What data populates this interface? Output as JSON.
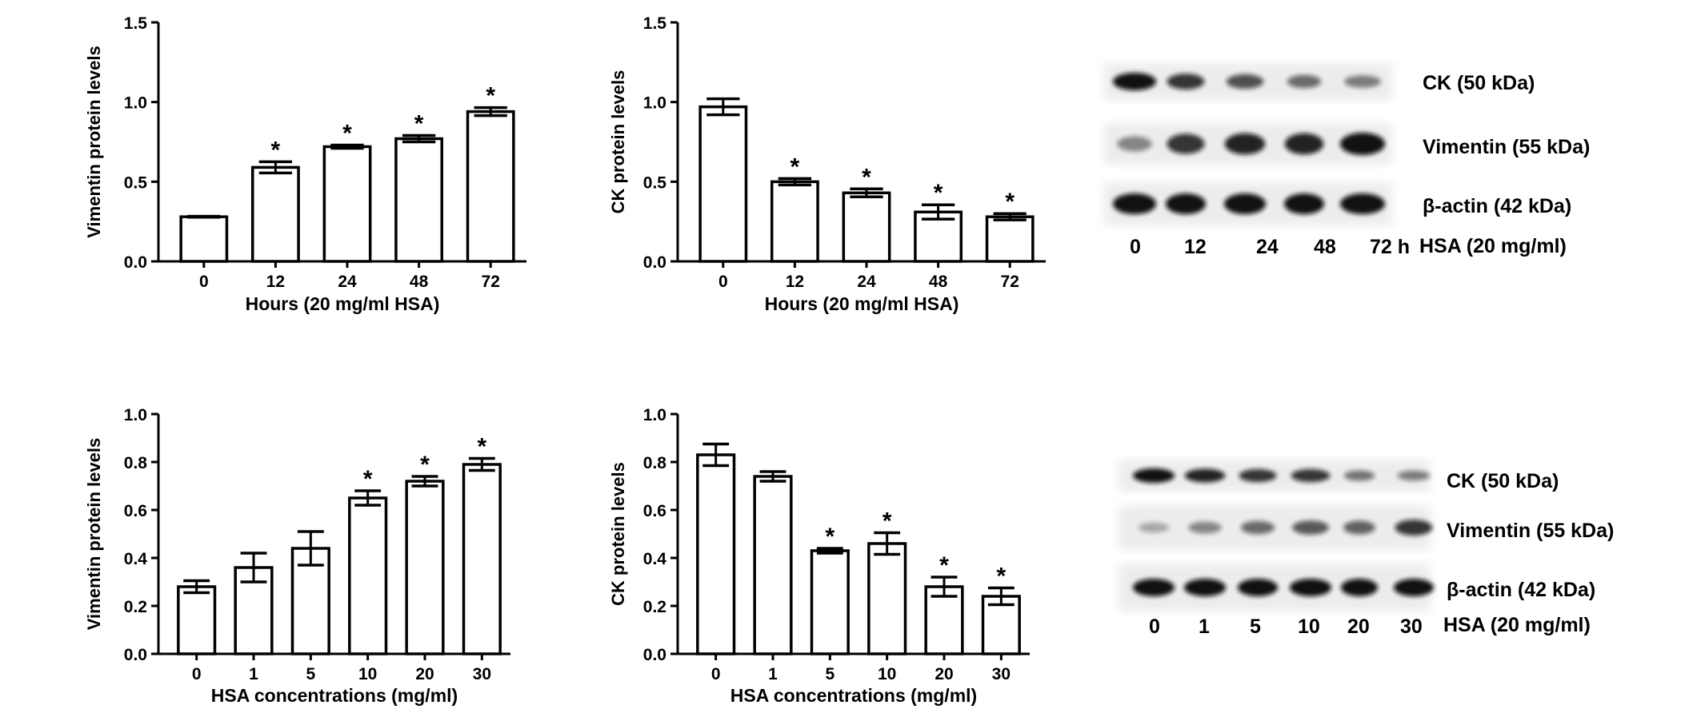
{
  "chart_data": [
    {
      "type": "bar",
      "categories": [
        "0",
        "12",
        "24",
        "48",
        "72"
      ],
      "values": [
        0.28,
        0.59,
        0.72,
        0.77,
        0.94
      ],
      "errors": [
        0.003,
        0.035,
        0.01,
        0.02,
        0.025
      ],
      "significant": [
        false,
        true,
        true,
        true,
        true
      ],
      "xlabel": "Hours (20 mg/ml HSA)",
      "ylabel": "Vimentin protein levels",
      "ylim": [
        0,
        1.5
      ],
      "yticks": [
        "0.0",
        "0.5",
        "1.0",
        "1.5"
      ]
    },
    {
      "type": "bar",
      "categories": [
        "0",
        "12",
        "24",
        "48",
        "72"
      ],
      "values": [
        0.97,
        0.5,
        0.43,
        0.31,
        0.28
      ],
      "errors": [
        0.05,
        0.02,
        0.025,
        0.045,
        0.02
      ],
      "significant": [
        false,
        true,
        true,
        true,
        true
      ],
      "xlabel": "Hours (20 mg/ml HSA)",
      "ylabel": "CK protein levels",
      "ylim": [
        0,
        1.5
      ],
      "yticks": [
        "0.0",
        "0.5",
        "1.0",
        "1.5"
      ]
    },
    {
      "type": "bar",
      "categories": [
        "0",
        "1",
        "5",
        "10",
        "20",
        "30"
      ],
      "values": [
        0.28,
        0.36,
        0.44,
        0.65,
        0.72,
        0.79
      ],
      "errors": [
        0.025,
        0.06,
        0.07,
        0.03,
        0.02,
        0.025
      ],
      "significant": [
        false,
        false,
        false,
        true,
        true,
        true
      ],
      "xlabel": "HSA concentrations (mg/ml)",
      "ylabel": "Vimentin protein levels",
      "ylim": [
        0,
        1.0
      ],
      "yticks": [
        "0.0",
        "0.2",
        "0.4",
        "0.6",
        "0.8",
        "1.0"
      ]
    },
    {
      "type": "bar",
      "categories": [
        "0",
        "1",
        "5",
        "10",
        "20",
        "30"
      ],
      "values": [
        0.83,
        0.74,
        0.43,
        0.46,
        0.28,
        0.24
      ],
      "errors": [
        0.045,
        0.02,
        0.01,
        0.045,
        0.04,
        0.035
      ],
      "significant": [
        false,
        false,
        true,
        true,
        true,
        true
      ],
      "xlabel": "HSA concentrations (mg/ml)",
      "ylabel": "CK protein levels",
      "ylim": [
        0,
        1.0
      ],
      "yticks": [
        "0.0",
        "0.2",
        "0.4",
        "0.6",
        "0.8",
        "1.0"
      ]
    }
  ],
  "blots": [
    {
      "row_labels": [
        "CK (50 kDa)",
        "Vimentin (55 kDa)",
        "β-actin (42 kDa)"
      ],
      "lane_labels": [
        "0",
        "12",
        "24",
        "48",
        "72 h"
      ],
      "condition_label": "HSA (20 mg/ml)",
      "band_intensity": {
        "CK (50 kDa)": [
          1.0,
          0.8,
          0.65,
          0.5,
          0.4
        ],
        "Vimentin (55 kDa)": [
          0.35,
          0.8,
          0.9,
          0.9,
          1.0
        ],
        "β-actin (42 kDa)": [
          1.0,
          1.0,
          1.0,
          1.0,
          1.0
        ]
      }
    },
    {
      "row_labels": [
        "CK (50 kDa)",
        "Vimentin (55 kDa)",
        "β-actin (42 kDa)"
      ],
      "lane_labels": [
        "0",
        "1",
        "5",
        "10",
        "20",
        "30"
      ],
      "condition_label": "HSA (20 mg/ml)",
      "band_intensity": {
        "CK (50 kDa)": [
          1.0,
          0.9,
          0.8,
          0.8,
          0.45,
          0.4
        ],
        "Vimentin (55 kDa)": [
          0.15,
          0.35,
          0.5,
          0.6,
          0.55,
          0.8
        ],
        "β-actin (42 kDa)": [
          1.0,
          1.0,
          1.0,
          1.0,
          1.0,
          1.0
        ]
      }
    }
  ],
  "significance_marker": "*"
}
